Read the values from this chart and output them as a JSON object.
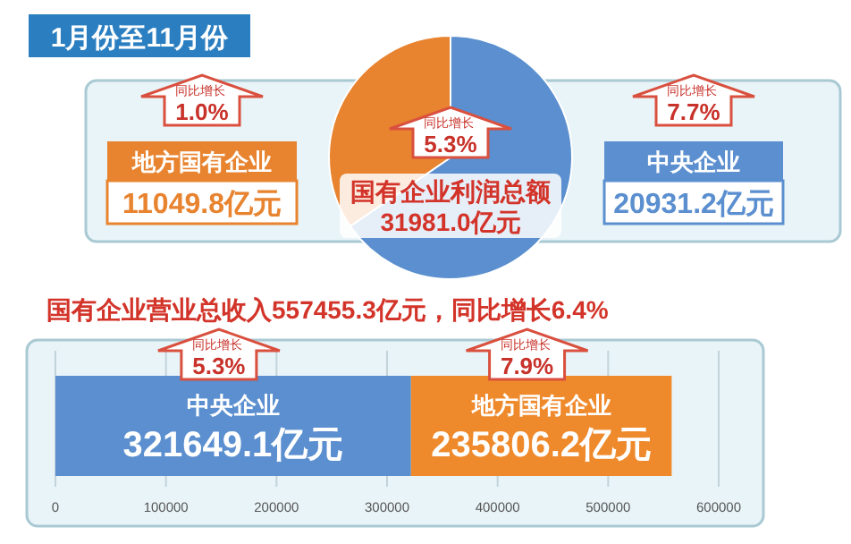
{
  "chart_data": [
    {
      "type": "pie",
      "title": "国有企业利润总额",
      "subtitle": "31981.0亿元",
      "categories": [
        "地方国有企业",
        "中央企业"
      ],
      "values": [
        11049.8,
        20931.2
      ],
      "colors": [
        "#e8832f",
        "#5b8fcf"
      ],
      "value_labels": [
        "11049.8亿元",
        "20931.2亿元"
      ],
      "annotations": [
        "1月份至11月份",
        "同比增长 5.3%",
        "同比增长 1.0%",
        "同比增长 7.7%"
      ]
    },
    {
      "type": "bar",
      "orientation": "horizontal",
      "stacked": true,
      "title": "国有企业营业总收入557455.3亿元，同比增长6.4%",
      "categories": [
        null
      ],
      "series": [
        {
          "name": "中央企业",
          "color": "#5b8fcf",
          "values": [
            321649.1
          ],
          "value_labels": [
            "321649.1亿元"
          ]
        },
        {
          "name": "地方国有企业",
          "color": "#ef8a2c",
          "values": [
            235806.2
          ],
          "value_labels": [
            "235806.2亿元"
          ]
        }
      ],
      "xlim": [
        0,
        600000
      ],
      "xticks": [
        0,
        100000,
        200000,
        300000,
        400000,
        500000,
        600000
      ],
      "grid": "x",
      "annotations": [
        "同比增长 5.3%",
        "同比增长 7.9%"
      ]
    }
  ]
}
